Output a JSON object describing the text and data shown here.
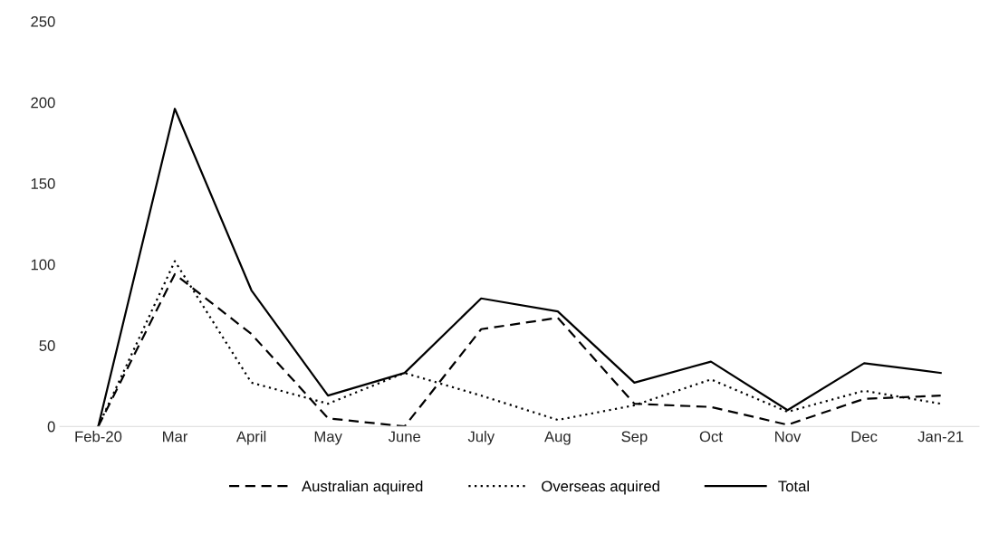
{
  "chart_data": {
    "type": "line",
    "categories": [
      "Feb-20",
      "Mar",
      "April",
      "May",
      "June",
      "July",
      "Aug",
      "Sep",
      "Oct",
      "Nov",
      "Dec",
      "Jan-21"
    ],
    "series": [
      {
        "name": "Australian aquired",
        "color": "#000000",
        "line_style": "dashed",
        "values": [
          0,
          94,
          57,
          5,
          0,
          60,
          67,
          14,
          12,
          1,
          17,
          19
        ]
      },
      {
        "name": "Overseas aquired",
        "color": "#000000",
        "line_style": "dotted",
        "values": [
          0,
          102,
          27,
          14,
          33,
          19,
          4,
          13,
          29,
          9,
          22,
          14
        ]
      },
      {
        "name": "Total",
        "color": "#000000",
        "line_style": "solid",
        "values": [
          0,
          196,
          84,
          19,
          33,
          79,
          71,
          27,
          40,
          10,
          39,
          33
        ]
      }
    ],
    "ylim": [
      0,
      250
    ],
    "yticks": [
      0,
      50,
      100,
      150,
      200,
      250
    ],
    "grid": false,
    "legend": "bottom",
    "marker": "none"
  }
}
